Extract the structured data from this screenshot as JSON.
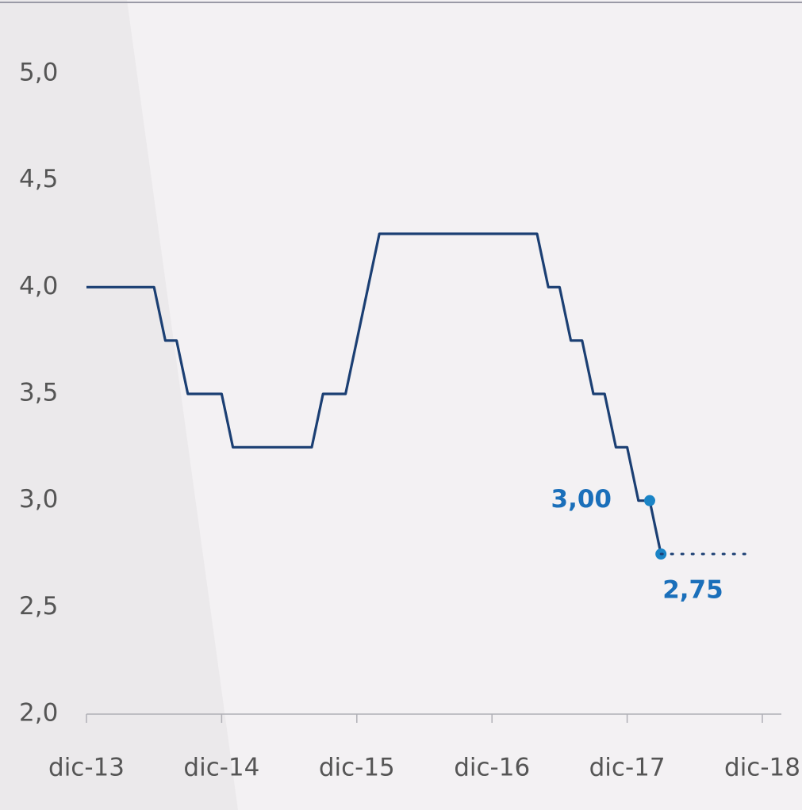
{
  "chart_data": {
    "type": "line",
    "categories": [
      "dic-13",
      null,
      null,
      null,
      null,
      null,
      null,
      null,
      null,
      null,
      null,
      null,
      "dic-14",
      null,
      null,
      null,
      null,
      null,
      null,
      null,
      null,
      null,
      null,
      null,
      "dic-15",
      null,
      null,
      null,
      null,
      null,
      null,
      null,
      null,
      null,
      null,
      null,
      "dic-16",
      null,
      null,
      null,
      null,
      null,
      null,
      null,
      null,
      null,
      null,
      null,
      "dic-17",
      null,
      null,
      null,
      null,
      null,
      null,
      null,
      null,
      null,
      null,
      null,
      "dic-18"
    ],
    "series": [
      {
        "color": "#1b3f73",
        "style": "solid",
        "values": [
          4.0,
          4.0,
          4.0,
          4.0,
          4.0,
          4.0,
          4.0,
          3.75,
          3.75,
          3.5,
          3.5,
          3.5,
          3.5,
          3.25,
          3.25,
          3.25,
          3.25,
          3.25,
          3.25,
          3.25,
          3.25,
          3.5,
          3.5,
          3.5,
          3.75,
          4.0,
          4.25,
          4.25,
          4.25,
          4.25,
          4.25,
          4.25,
          4.25,
          4.25,
          4.25,
          4.25,
          4.25,
          4.25,
          4.25,
          4.25,
          4.25,
          4.0,
          4.0,
          3.75,
          3.75,
          3.5,
          3.5,
          3.25,
          3.25,
          3.0,
          3.0,
          2.75,
          null,
          null,
          null,
          null,
          null,
          null,
          null,
          null,
          null
        ],
        "value_labels": [
          null,
          null,
          null,
          null,
          null,
          null,
          null,
          null,
          null,
          null,
          null,
          null,
          null,
          null,
          null,
          null,
          null,
          null,
          null,
          null,
          null,
          null,
          null,
          null,
          null,
          null,
          null,
          null,
          null,
          null,
          null,
          null,
          null,
          null,
          null,
          null,
          null,
          null,
          null,
          null,
          null,
          null,
          null,
          null,
          null,
          null,
          null,
          null,
          null,
          null,
          "3,00",
          "2,75",
          null,
          null,
          null,
          null,
          null,
          null,
          null,
          null,
          null
        ]
      },
      {
        "color": "#1b3f73",
        "style": "dotted",
        "values": [
          null,
          null,
          null,
          null,
          null,
          null,
          null,
          null,
          null,
          null,
          null,
          null,
          null,
          null,
          null,
          null,
          null,
          null,
          null,
          null,
          null,
          null,
          null,
          null,
          null,
          null,
          null,
          null,
          null,
          null,
          null,
          null,
          null,
          null,
          null,
          null,
          null,
          null,
          null,
          null,
          null,
          null,
          null,
          null,
          null,
          null,
          null,
          null,
          null,
          null,
          null,
          2.75,
          2.75,
          2.75,
          2.75,
          2.75,
          2.75,
          2.75,
          2.75,
          2.75,
          null
        ]
      }
    ],
    "ylim": [
      2.0,
      5.0
    ],
    "yticks": [
      {
        "value": 2.0,
        "label": "2,0"
      },
      {
        "value": 2.5,
        "label": "2,5"
      },
      {
        "value": 3.0,
        "label": "3,0"
      },
      {
        "value": 3.5,
        "label": "3,5"
      },
      {
        "value": 4.0,
        "label": "4,0"
      },
      {
        "value": 4.5,
        "label": "4,5"
      },
      {
        "value": 5.0,
        "label": "5,0"
      }
    ],
    "grid": false
  }
}
